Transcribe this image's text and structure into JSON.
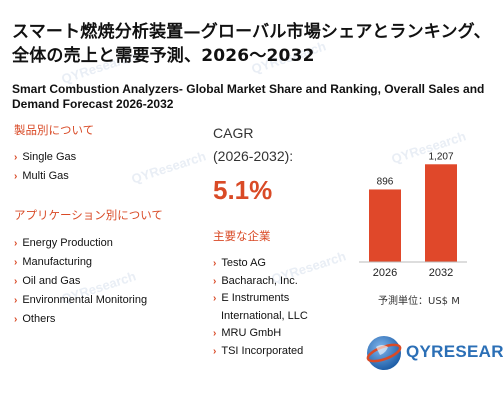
{
  "title_jp": "スマート燃焼分析装置—グローバル市場シェアとランキング、全体の売上と需要予測、2026～2032",
  "title_en": "Smart Combustion Analyzers- Global Market Share and Ranking, Overall Sales and Demand Forecast 2026-2032",
  "products": {
    "heading": "製品別について",
    "items": [
      "Single Gas",
      "Multi Gas"
    ]
  },
  "applications": {
    "heading": "アプリケーション別について",
    "items": [
      "Energy Production",
      "Manufacturing",
      "Oil and Gas",
      "Environmental Monitoring",
      "Others"
    ]
  },
  "cagr": {
    "label": "CAGR",
    "period": "(2026-2032):",
    "value": "5.1%"
  },
  "companies": {
    "heading": "主要な企業",
    "items": [
      "Testo AG",
      "Bacharach, Inc.",
      "E Instruments",
      "MRU GmbH",
      "TSI Incorporated"
    ],
    "continuation": "International, LLC"
  },
  "chart_data": {
    "type": "bar",
    "categories": [
      "2026",
      "2032"
    ],
    "values": [
      896,
      1207
    ],
    "value_labels": [
      "896",
      "1,207"
    ],
    "ylim": [
      0,
      1300
    ],
    "bar_color": "#e0482a",
    "unit_label": "予測単位：US$ M"
  },
  "logo": {
    "text": "QYRESEARCH",
    "color": "#2b6fb6"
  },
  "colors": {
    "accent": "#d94a26",
    "brand": "#2b6fb6"
  }
}
